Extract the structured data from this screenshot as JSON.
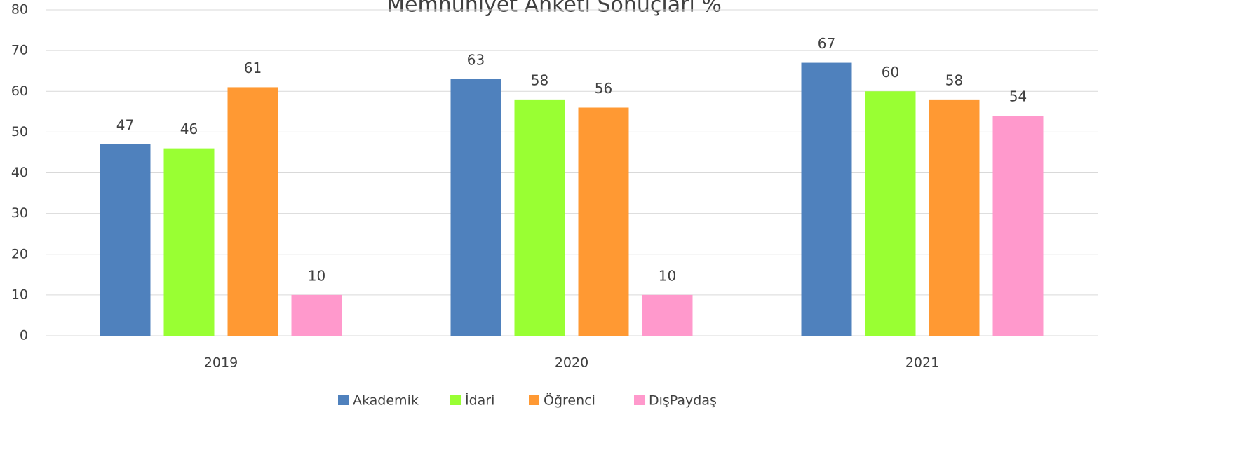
{
  "chart_data": {
    "type": "bar",
    "title": "Memnuniyet Anketi Sonuçları %",
    "categories": [
      "2019",
      "2020",
      "2021"
    ],
    "series": [
      {
        "name": "Akademik",
        "color": "#4f81bd",
        "values": [
          47,
          63,
          67
        ]
      },
      {
        "name": "İdari",
        "color": "#99ff33",
        "values": [
          46,
          58,
          60
        ]
      },
      {
        "name": "Öğrenci",
        "color": "#ff9933",
        "values": [
          61,
          56,
          58
        ]
      },
      {
        "name": "DışPaydaş",
        "color": "#ff99cc",
        "values": [
          10,
          10,
          54
        ]
      }
    ],
    "ylim": [
      0,
      80
    ],
    "yticks": [
      0,
      10,
      20,
      30,
      40,
      50,
      60,
      70,
      80
    ],
    "grid": true,
    "legend": "bottom"
  }
}
